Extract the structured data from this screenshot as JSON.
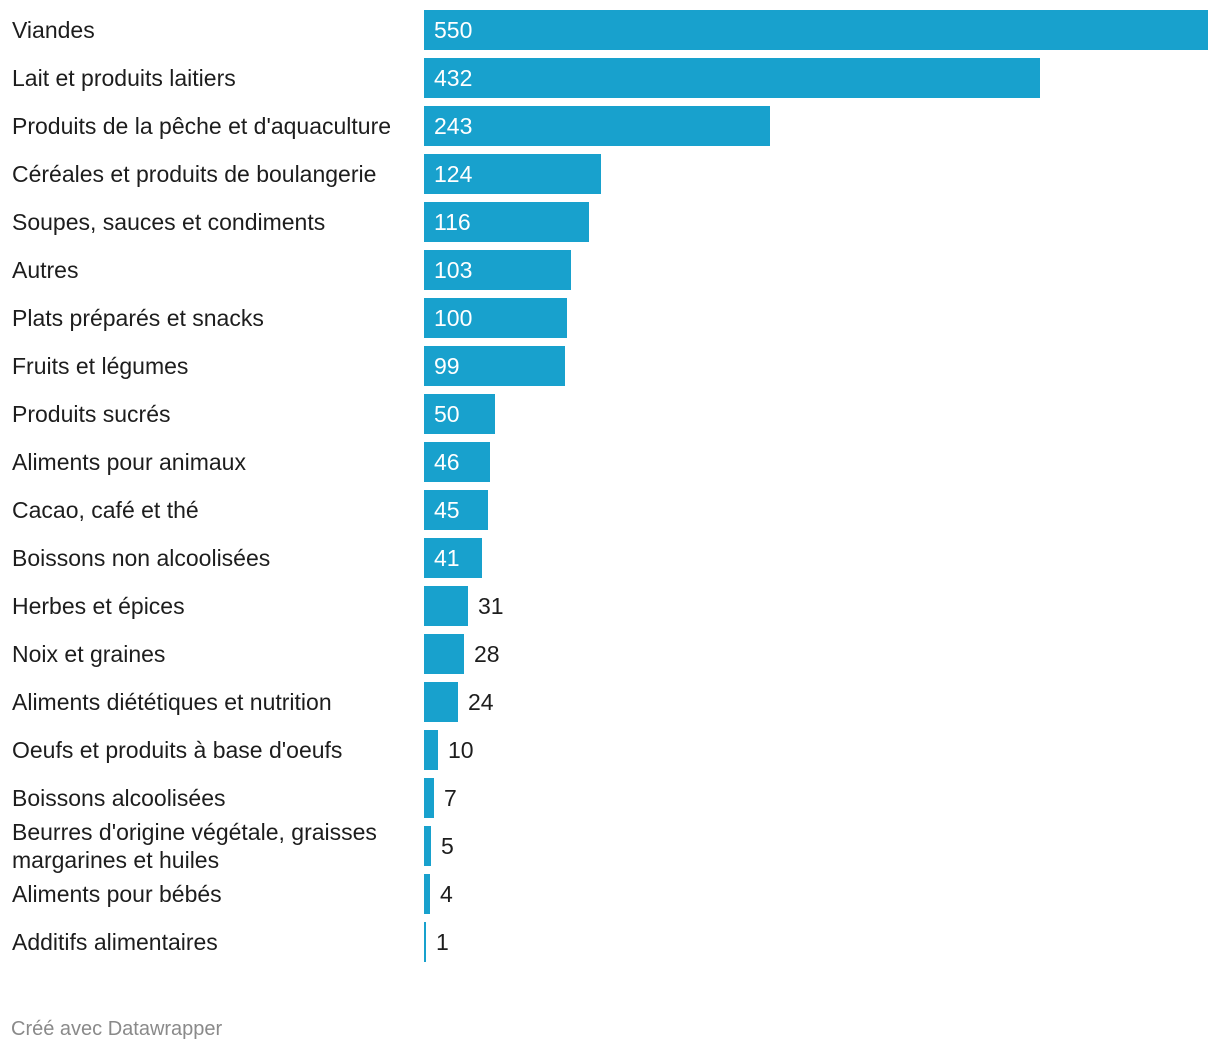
{
  "chart_data": {
    "type": "bar",
    "orientation": "horizontal",
    "categories": [
      "Viandes",
      "Lait et produits laitiers",
      "Produits de la pêche et d'aquaculture",
      "Céréales et produits de boulangerie",
      "Soupes, sauces et condiments",
      "Autres",
      "Plats préparés et snacks",
      "Fruits et légumes",
      "Produits sucrés",
      "Aliments pour animaux",
      "Cacao, café et thé",
      "Boissons non alcoolisées",
      "Herbes et épices",
      "Noix et graines",
      "Aliments diététiques et nutrition",
      "Oeufs et produits à base d'oeufs",
      "Boissons alcoolisées",
      "Beurres d'origine végétale, graisses margarines et huiles",
      "Aliments pour bébés",
      "Additifs alimentaires"
    ],
    "values": [
      550,
      432,
      243,
      124,
      116,
      103,
      100,
      99,
      50,
      46,
      45,
      41,
      31,
      28,
      24,
      10,
      7,
      5,
      4,
      1
    ],
    "xlim": [
      0,
      550
    ],
    "grid": false,
    "legend": "none",
    "bar_color": "#18a1cd"
  },
  "footer": {
    "credit": "Créé avec Datawrapper"
  }
}
